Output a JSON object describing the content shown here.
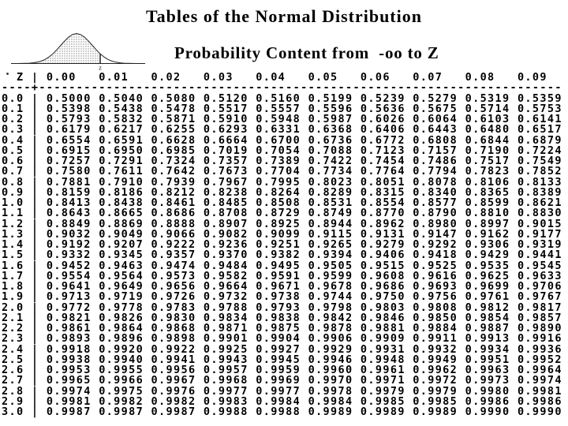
{
  "header": {
    "title": "Tables of the Normal Distribution",
    "subtitle": "Probability Content from  -oo to Z"
  },
  "figure": {
    "z_label": "z",
    "description": "standard normal curve with area shaded from -oo to z"
  },
  "table": {
    "corner_label": "Z",
    "column_headers": [
      "0.00",
      "0.01",
      "0.02",
      "0.03",
      "0.04",
      "0.05",
      "0.06",
      "0.07",
      "0.08",
      "0.09"
    ],
    "separator": "----+----------------------------------------------------------------------",
    "rows": [
      {
        "z": "0.0",
        "values": [
          "0.5000",
          "0.5040",
          "0.5080",
          "0.5120",
          "0.5160",
          "0.5199",
          "0.5239",
          "0.5279",
          "0.5319",
          "0.5359"
        ]
      },
      {
        "z": "0.1",
        "values": [
          "0.5398",
          "0.5438",
          "0.5478",
          "0.5517",
          "0.5557",
          "0.5596",
          "0.5636",
          "0.5675",
          "0.5714",
          "0.5753"
        ]
      },
      {
        "z": "0.2",
        "values": [
          "0.5793",
          "0.5832",
          "0.5871",
          "0.5910",
          "0.5948",
          "0.5987",
          "0.6026",
          "0.6064",
          "0.6103",
          "0.6141"
        ]
      },
      {
        "z": "0.3",
        "values": [
          "0.6179",
          "0.6217",
          "0.6255",
          "0.6293",
          "0.6331",
          "0.6368",
          "0.6406",
          "0.6443",
          "0.6480",
          "0.6517"
        ]
      },
      {
        "z": "0.4",
        "values": [
          "0.6554",
          "0.6591",
          "0.6628",
          "0.6664",
          "0.6700",
          "0.6736",
          "0.6772",
          "0.6808",
          "0.6844",
          "0.6879"
        ]
      },
      {
        "z": "0.5",
        "values": [
          "0.6915",
          "0.6950",
          "0.6985",
          "0.7019",
          "0.7054",
          "0.7088",
          "0.7123",
          "0.7157",
          "0.7190",
          "0.7224"
        ]
      },
      {
        "z": "0.6",
        "values": [
          "0.7257",
          "0.7291",
          "0.7324",
          "0.7357",
          "0.7389",
          "0.7422",
          "0.7454",
          "0.7486",
          "0.7517",
          "0.7549"
        ]
      },
      {
        "z": "0.7",
        "values": [
          "0.7580",
          "0.7611",
          "0.7642",
          "0.7673",
          "0.7704",
          "0.7734",
          "0.7764",
          "0.7794",
          "0.7823",
          "0.7852"
        ]
      },
      {
        "z": "0.8",
        "values": [
          "0.7881",
          "0.7910",
          "0.7939",
          "0.7967",
          "0.7995",
          "0.8023",
          "0.8051",
          "0.8078",
          "0.8106",
          "0.8133"
        ]
      },
      {
        "z": "0.9",
        "values": [
          "0.8159",
          "0.8186",
          "0.8212",
          "0.8238",
          "0.8264",
          "0.8289",
          "0.8315",
          "0.8340",
          "0.8365",
          "0.8389"
        ]
      },
      {
        "z": "1.0",
        "values": [
          "0.8413",
          "0.8438",
          "0.8461",
          "0.8485",
          "0.8508",
          "0.8531",
          "0.8554",
          "0.8577",
          "0.8599",
          "0.8621"
        ]
      },
      {
        "z": "1.1",
        "values": [
          "0.8643",
          "0.8665",
          "0.8686",
          "0.8708",
          "0.8729",
          "0.8749",
          "0.8770",
          "0.8790",
          "0.8810",
          "0.8830"
        ]
      },
      {
        "z": "1.2",
        "values": [
          "0.8849",
          "0.8869",
          "0.8888",
          "0.8907",
          "0.8925",
          "0.8944",
          "0.8962",
          "0.8980",
          "0.8997",
          "0.9015"
        ]
      },
      {
        "z": "1.3",
        "values": [
          "0.9032",
          "0.9049",
          "0.9066",
          "0.9082",
          "0.9099",
          "0.9115",
          "0.9131",
          "0.9147",
          "0.9162",
          "0.9177"
        ]
      },
      {
        "z": "1.4",
        "values": [
          "0.9192",
          "0.9207",
          "0.9222",
          "0.9236",
          "0.9251",
          "0.9265",
          "0.9279",
          "0.9292",
          "0.9306",
          "0.9319"
        ]
      },
      {
        "z": "1.5",
        "values": [
          "0.9332",
          "0.9345",
          "0.9357",
          "0.9370",
          "0.9382",
          "0.9394",
          "0.9406",
          "0.9418",
          "0.9429",
          "0.9441"
        ]
      },
      {
        "z": "1.6",
        "values": [
          "0.9452",
          "0.9463",
          "0.9474",
          "0.9484",
          "0.9495",
          "0.9505",
          "0.9515",
          "0.9525",
          "0.9535",
          "0.9545"
        ]
      },
      {
        "z": "1.7",
        "values": [
          "0.9554",
          "0.9564",
          "0.9573",
          "0.9582",
          "0.9591",
          "0.9599",
          "0.9608",
          "0.9616",
          "0.9625",
          "0.9633"
        ]
      },
      {
        "z": "1.8",
        "values": [
          "0.9641",
          "0.9649",
          "0.9656",
          "0.9664",
          "0.9671",
          "0.9678",
          "0.9686",
          "0.9693",
          "0.9699",
          "0.9706"
        ]
      },
      {
        "z": "1.9",
        "values": [
          "0.9713",
          "0.9719",
          "0.9726",
          "0.9732",
          "0.9738",
          "0.9744",
          "0.9750",
          "0.9756",
          "0.9761",
          "0.9767"
        ]
      },
      {
        "z": "2.0",
        "values": [
          "0.9772",
          "0.9778",
          "0.9783",
          "0.9788",
          "0.9793",
          "0.9798",
          "0.9803",
          "0.9808",
          "0.9812",
          "0.9817"
        ]
      },
      {
        "z": "2.1",
        "values": [
          "0.9821",
          "0.9826",
          "0.9830",
          "0.9834",
          "0.9838",
          "0.9842",
          "0.9846",
          "0.9850",
          "0.9854",
          "0.9857"
        ]
      },
      {
        "z": "2.2",
        "values": [
          "0.9861",
          "0.9864",
          "0.9868",
          "0.9871",
          "0.9875",
          "0.9878",
          "0.9881",
          "0.9884",
          "0.9887",
          "0.9890"
        ]
      },
      {
        "z": "2.3",
        "values": [
          "0.9893",
          "0.9896",
          "0.9898",
          "0.9901",
          "0.9904",
          "0.9906",
          "0.9909",
          "0.9911",
          "0.9913",
          "0.9916"
        ]
      },
      {
        "z": "2.4",
        "values": [
          "0.9918",
          "0.9920",
          "0.9922",
          "0.9925",
          "0.9927",
          "0.9929",
          "0.9931",
          "0.9932",
          "0.9934",
          "0.9936"
        ]
      },
      {
        "z": "2.5",
        "values": [
          "0.9938",
          "0.9940",
          "0.9941",
          "0.9943",
          "0.9945",
          "0.9946",
          "0.9948",
          "0.9949",
          "0.9951",
          "0.9952"
        ]
      },
      {
        "z": "2.6",
        "values": [
          "0.9953",
          "0.9955",
          "0.9956",
          "0.9957",
          "0.9959",
          "0.9960",
          "0.9961",
          "0.9962",
          "0.9963",
          "0.9964"
        ]
      },
      {
        "z": "2.7",
        "values": [
          "0.9965",
          "0.9966",
          "0.9967",
          "0.9968",
          "0.9969",
          "0.9970",
          "0.9971",
          "0.9972",
          "0.9973",
          "0.9974"
        ]
      },
      {
        "z": "2.8",
        "values": [
          "0.9974",
          "0.9975",
          "0.9976",
          "0.9977",
          "0.9977",
          "0.9978",
          "0.9979",
          "0.9979",
          "0.9980",
          "0.9981"
        ]
      },
      {
        "z": "2.9",
        "values": [
          "0.9981",
          "0.9982",
          "0.9982",
          "0.9983",
          "0.9984",
          "0.9984",
          "0.9985",
          "0.9985",
          "0.9986",
          "0.9986"
        ]
      },
      {
        "z": "3.0",
        "values": [
          "0.9987",
          "0.9987",
          "0.9987",
          "0.9988",
          "0.9988",
          "0.9989",
          "0.9989",
          "0.9989",
          "0.9990",
          "0.9990"
        ]
      }
    ]
  }
}
